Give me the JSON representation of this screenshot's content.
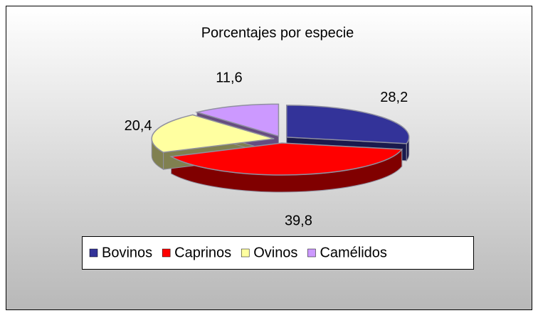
{
  "chart_data": {
    "type": "pie3d",
    "title": "Porcentajes por especie",
    "categories": [
      "Bovinos",
      "Caprinos",
      "Ovinos",
      "Camélidos"
    ],
    "values": [
      28.2,
      39.8,
      20.4,
      11.6
    ],
    "value_labels": [
      "28,2",
      "39,8",
      "20,4",
      "11,6"
    ],
    "colors": [
      "#333399",
      "#ff0000",
      "#ffffa0",
      "#cc99ff"
    ],
    "legend": "bottom"
  }
}
